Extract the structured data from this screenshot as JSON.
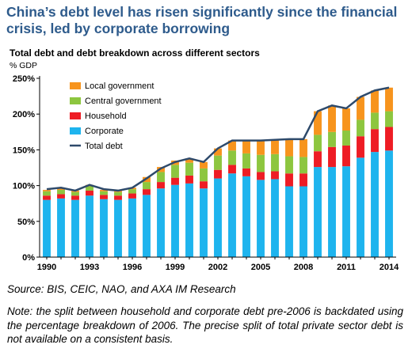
{
  "title": "China’s debt level has risen significantly since the financial crisis, led by corporate borrowing",
  "source": "Source: BIS, CEIC, NAO, and AXA IM Research",
  "note": "Note: the split between household and corporate debt pre-2006 is backdated using the percentage breakdown of 2006. The precise split of total private sector debt is not available on a consistent basis.",
  "chart_data": {
    "type": "bar",
    "title": "Total debt and debt breakdown across different sectors",
    "ylabel": "% GDP",
    "ylim": [
      0,
      250
    ],
    "yticks": [
      "0%",
      "50%",
      "100%",
      "150%",
      "200%",
      "250%"
    ],
    "x": [
      1990,
      1991,
      1992,
      1993,
      1994,
      1995,
      1996,
      1997,
      1998,
      1999,
      2000,
      2001,
      2002,
      2003,
      2004,
      2005,
      2006,
      2007,
      2008,
      2009,
      2010,
      2011,
      2012,
      2013,
      2014
    ],
    "xticks": [
      "1990",
      "1993",
      "1996",
      "1999",
      "2002",
      "2005",
      "2008",
      "2011",
      "2014"
    ],
    "legend_position": "top-left",
    "series": [
      {
        "name": "Corporate",
        "color": "#1eb4ee",
        "values": [
          80,
          82,
          80,
          86,
          81,
          80,
          82,
          87,
          96,
          101,
          103,
          96,
          110,
          117,
          113,
          108,
          109,
          99,
          99,
          126,
          126,
          127,
          139,
          147,
          149
        ]
      },
      {
        "name": "Household",
        "color": "#ee1c24",
        "values": [
          6,
          6,
          6,
          7,
          6,
          6,
          7,
          8,
          9,
          10,
          11,
          10,
          12,
          12,
          11,
          11,
          11,
          18,
          18,
          22,
          28,
          29,
          30,
          32,
          33
        ]
      },
      {
        "name": "Central government",
        "color": "#8dc63f",
        "values": [
          6,
          6,
          5,
          6,
          5,
          5,
          6,
          10,
          14,
          18,
          18,
          18,
          20,
          20,
          21,
          24,
          24,
          24,
          23,
          23,
          21,
          21,
          23,
          23,
          22
        ]
      },
      {
        "name": "Local government",
        "color": "#f7941d",
        "values": [
          2,
          2,
          2,
          2,
          2,
          2,
          2,
          7,
          7,
          6,
          6,
          9,
          10,
          14,
          18,
          20,
          20,
          24,
          25,
          33,
          37,
          31,
          32,
          31,
          33
        ]
      }
    ],
    "total": {
      "name": "Total debt",
      "color": "#2e4a6b",
      "values": [
        95,
        97,
        93,
        101,
        95,
        93,
        97,
        110,
        124,
        133,
        138,
        133,
        152,
        163,
        163,
        163,
        164,
        165,
        165,
        204,
        212,
        208,
        224,
        233,
        237
      ]
    }
  }
}
